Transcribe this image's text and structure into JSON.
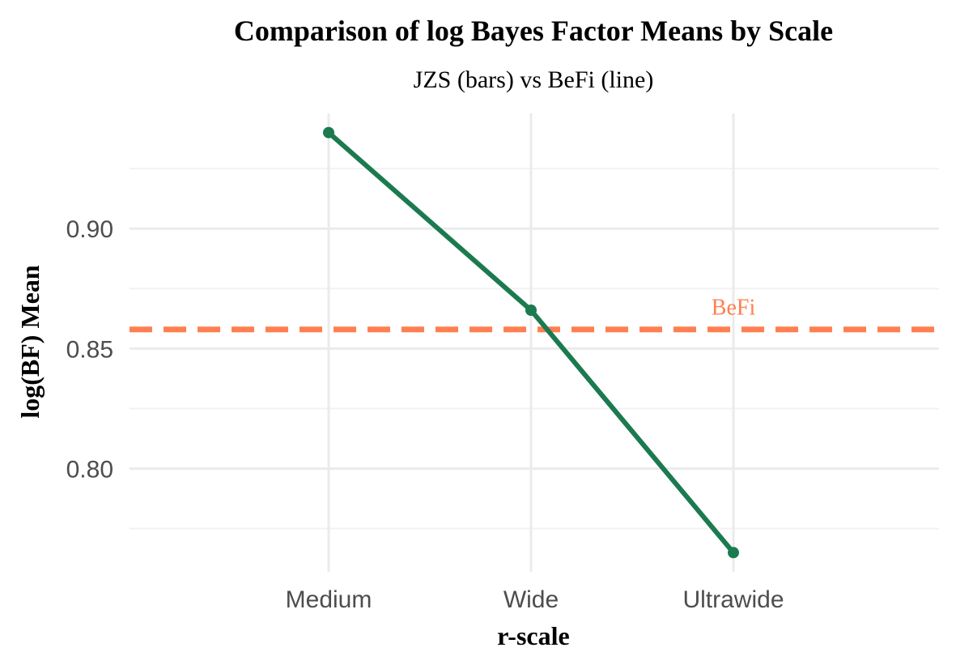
{
  "chart_data": {
    "type": "line",
    "title": "Comparison of log Bayes Factor Means by Scale",
    "subtitle": "JZS (bars) vs BeFi (line)",
    "xlabel": "r-scale",
    "ylabel": "log(BF) Mean",
    "categories": [
      "Medium",
      "Wide",
      "Ultrawide"
    ],
    "series": [
      {
        "values": [
          0.94,
          0.866,
          0.765
        ],
        "color": "#1b7a4f"
      }
    ],
    "reference_line": {
      "value": 0.858,
      "label": "BeFi",
      "color": "#ff7f50",
      "style": "dashed"
    },
    "ylim": [
      0.757,
      0.948
    ],
    "yticks": [
      0.8,
      0.85,
      0.9
    ],
    "ytick_labels": [
      "0.80",
      "0.85",
      "0.90"
    ],
    "y_minor_ticks": [
      0.775,
      0.825,
      0.875,
      0.925
    ],
    "grid": true,
    "legend": "none"
  }
}
